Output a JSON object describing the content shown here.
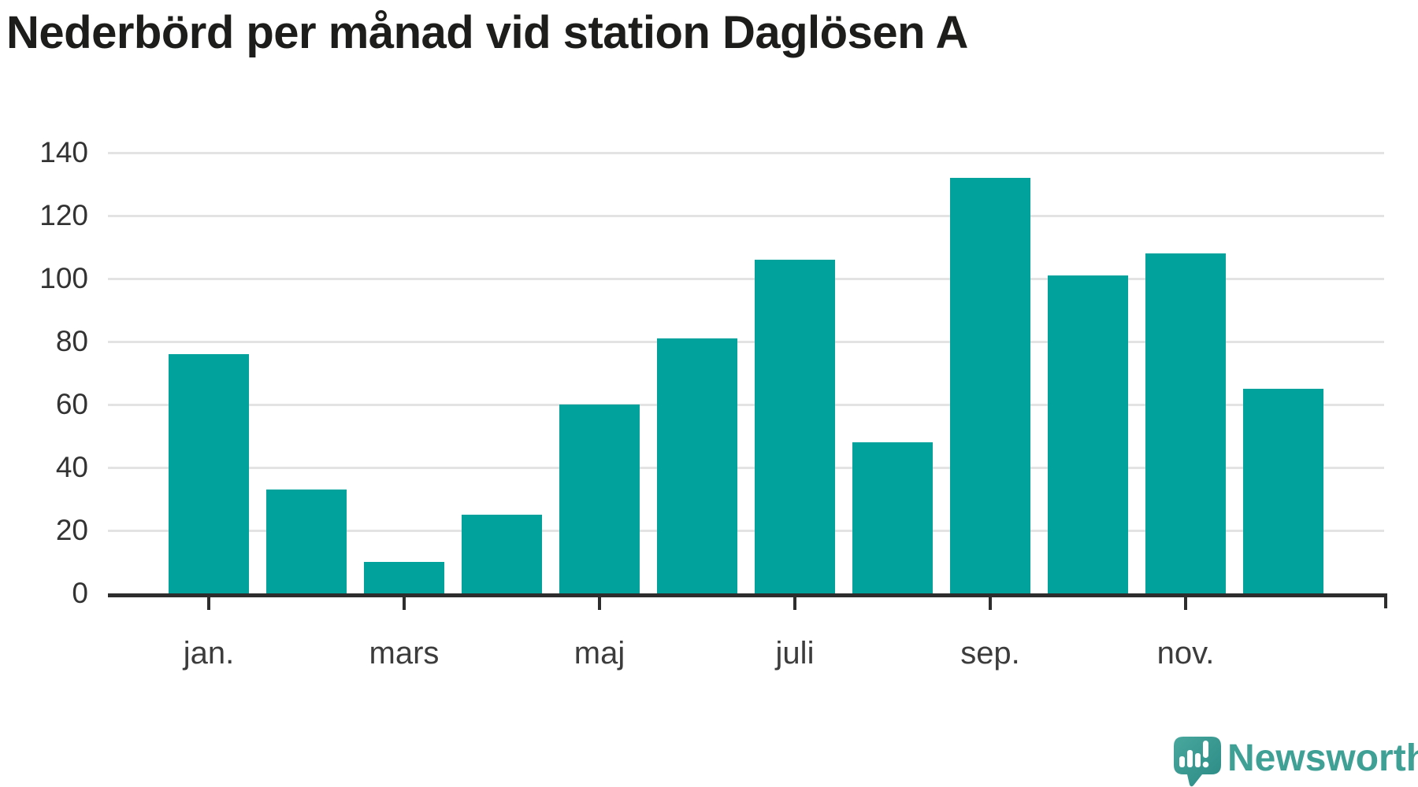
{
  "title": "Nederbörd per månad vid station Daglösen A",
  "branding": {
    "logo_text": "Newsworthy",
    "logo_icon": "newsworthy-speech-bubble-bar-chart-icon"
  },
  "colors": {
    "bar": "#00a29b",
    "grid": "#e3e3e3",
    "axis": "#2d2d2d",
    "title_text": "#1d1d1b",
    "y_tick_text": "#333333",
    "x_tick_text": "#3c3c3c",
    "logo_text": "#3fa096",
    "logo_bubble_light": "#48a79d",
    "logo_bubble_dark": "#2b8b85"
  },
  "chart_data": {
    "type": "bar",
    "title": "Nederbörd per månad vid station Daglösen A",
    "n_bars": 12,
    "values": [
      76,
      33,
      10,
      25,
      60,
      81,
      106,
      48,
      132,
      101,
      108,
      65
    ],
    "x_ticks": [
      {
        "index": 0,
        "label": "jan."
      },
      {
        "index": 2,
        "label": "mars"
      },
      {
        "index": 4,
        "label": "maj"
      },
      {
        "index": 6,
        "label": "juli"
      },
      {
        "index": 8,
        "label": "sep."
      },
      {
        "index": 10,
        "label": "nov."
      }
    ],
    "y_ticks": [
      0,
      20,
      40,
      60,
      80,
      100,
      120,
      140
    ],
    "ylim": [
      0,
      150
    ],
    "xlabel": "",
    "ylabel": "",
    "grid": "horizontal",
    "legend": "none"
  }
}
